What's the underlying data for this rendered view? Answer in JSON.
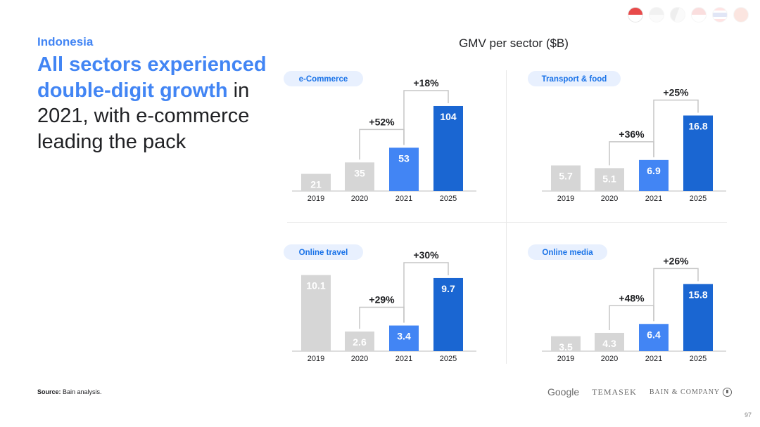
{
  "country": "Indonesia",
  "headline": {
    "highlight": "All sectors experienced double-digit growth",
    "rest": " in 2021, with e-commerce leading the pack"
  },
  "flags": [
    "indonesia-flag-icon",
    "malaysia-flag-icon",
    "philippines-flag-icon",
    "singapore-flag-icon",
    "thailand-flag-icon",
    "vietnam-flag-icon"
  ],
  "chart_title": "GMV per sector ($B)",
  "colors": {
    "gray": "#d6d6d6",
    "blue_light": "#4285f4",
    "blue_dark": "#1a66d2",
    "pill": "#e8f0fe",
    "pill_text": "#1a73e8",
    "bracket": "#c6c6c6"
  },
  "chart_data": [
    {
      "type": "bar",
      "title": "e-Commerce",
      "categories": [
        "2019",
        "2020",
        "2021",
        "2025"
      ],
      "values": [
        21,
        35,
        53,
        104
      ],
      "value_labels": [
        "21",
        "35",
        "53",
        "104"
      ],
      "ylim": [
        0,
        110
      ],
      "annotations": [
        {
          "from": "2020",
          "to": "2021",
          "label": "+52%"
        },
        {
          "from": "2021",
          "to": "2025",
          "label": "+18%"
        }
      ]
    },
    {
      "type": "bar",
      "title": "Transport & food",
      "categories": [
        "2019",
        "2020",
        "2021",
        "2025"
      ],
      "values": [
        5.7,
        5.1,
        6.9,
        16.8
      ],
      "value_labels": [
        "5.7",
        "5.1",
        "6.9",
        "16.8"
      ],
      "ylim": [
        0,
        20
      ],
      "annotations": [
        {
          "from": "2020",
          "to": "2021",
          "label": "+36%"
        },
        {
          "from": "2021",
          "to": "2025",
          "label": "+25%"
        }
      ]
    },
    {
      "type": "bar",
      "title": "Online travel",
      "categories": [
        "2019",
        "2020",
        "2021",
        "2025"
      ],
      "values": [
        10.1,
        2.6,
        3.4,
        9.7
      ],
      "value_labels": [
        "10.1",
        "2.6",
        "3.4",
        "9.7"
      ],
      "ylim": [
        0,
        11
      ],
      "annotations": [
        {
          "from": "2020",
          "to": "2021",
          "label": "+29%"
        },
        {
          "from": "2021",
          "to": "2025",
          "label": "+30%"
        }
      ]
    },
    {
      "type": "bar",
      "title": "Online media",
      "categories": [
        "2019",
        "2020",
        "2021",
        "2025"
      ],
      "values": [
        3.5,
        4.3,
        6.4,
        15.8
      ],
      "value_labels": [
        "3.5",
        "4.3",
        "6.4",
        "15.8"
      ],
      "ylim": [
        0,
        19
      ],
      "annotations": [
        {
          "from": "2020",
          "to": "2021",
          "label": "+48%"
        },
        {
          "from": "2021",
          "to": "2025",
          "label": "+26%"
        }
      ]
    }
  ],
  "source": {
    "label": "Source:",
    "text": " Bain analysis."
  },
  "logos": {
    "google": "Google",
    "temasek": "TEMASEK",
    "bain": "BAIN & COMPANY"
  },
  "page_number": "97"
}
